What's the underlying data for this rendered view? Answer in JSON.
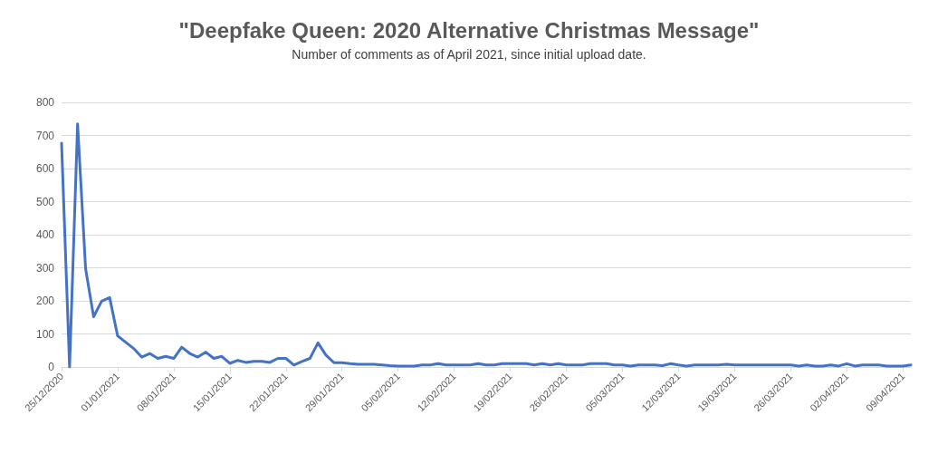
{
  "chart_data": {
    "type": "line",
    "title": "\"Deepfake Queen: 2020 Alternative Christmas Message\"",
    "subtitle": "Number of comments as of April 2021, since initial upload date.",
    "x": [
      "2020-12-25",
      "2020-12-26",
      "2020-12-27",
      "2020-12-28",
      "2020-12-29",
      "2020-12-30",
      "2020-12-31",
      "2021-01-01",
      "2021-01-02",
      "2021-01-03",
      "2021-01-04",
      "2021-01-05",
      "2021-01-06",
      "2021-01-07",
      "2021-01-08",
      "2021-01-09",
      "2021-01-10",
      "2021-01-11",
      "2021-01-12",
      "2021-01-13",
      "2021-01-14",
      "2021-01-15",
      "2021-01-16",
      "2021-01-17",
      "2021-01-18",
      "2021-01-19",
      "2021-01-20",
      "2021-01-21",
      "2021-01-22",
      "2021-01-23",
      "2021-01-24",
      "2021-01-25",
      "2021-01-26",
      "2021-01-27",
      "2021-01-28",
      "2021-01-29",
      "2021-01-30",
      "2021-01-31",
      "2021-02-01",
      "2021-02-02",
      "2021-02-03",
      "2021-02-04",
      "2021-02-05",
      "2021-02-06",
      "2021-02-07",
      "2021-02-08",
      "2021-02-09",
      "2021-02-10",
      "2021-02-11",
      "2021-02-12",
      "2021-02-13",
      "2021-02-14",
      "2021-02-15",
      "2021-02-16",
      "2021-02-17",
      "2021-02-18",
      "2021-02-19",
      "2021-02-20",
      "2021-02-21",
      "2021-02-22",
      "2021-02-23",
      "2021-02-24",
      "2021-02-25",
      "2021-02-26",
      "2021-02-27",
      "2021-02-28",
      "2021-03-01",
      "2021-03-02",
      "2021-03-03",
      "2021-03-04",
      "2021-03-05",
      "2021-03-06",
      "2021-03-07",
      "2021-03-08",
      "2021-03-09",
      "2021-03-10",
      "2021-03-11",
      "2021-03-12",
      "2021-03-13",
      "2021-03-14",
      "2021-03-15",
      "2021-03-16",
      "2021-03-17",
      "2021-03-18",
      "2021-03-19",
      "2021-03-20",
      "2021-03-21",
      "2021-03-22",
      "2021-03-23",
      "2021-03-24",
      "2021-03-25",
      "2021-03-26",
      "2021-03-27",
      "2021-03-28",
      "2021-03-29",
      "2021-03-30",
      "2021-03-31",
      "2021-04-01",
      "2021-04-02",
      "2021-04-03",
      "2021-04-04",
      "2021-04-05",
      "2021-04-06",
      "2021-04-07",
      "2021-04-08",
      "2021-04-09",
      "2021-04-10"
    ],
    "series": [
      {
        "color": "#4472c4",
        "values": [
          677,
          0,
          735,
          297,
          152,
          199,
          210,
          94,
          75,
          56,
          30,
          41,
          26,
          32,
          26,
          60,
          41,
          30,
          45,
          26,
          32,
          11,
          20,
          14,
          17,
          17,
          14,
          26,
          26,
          6,
          17,
          26,
          73,
          36,
          13,
          13,
          10,
          8,
          8,
          8,
          6,
          4,
          3,
          3,
          3,
          6,
          6,
          10,
          6,
          6,
          6,
          6,
          10,
          6,
          6,
          10,
          10,
          10,
          10,
          6,
          10,
          6,
          10,
          6,
          6,
          6,
          10,
          10,
          10,
          6,
          6,
          3,
          6,
          6,
          6,
          4,
          10,
          6,
          3,
          6,
          6,
          6,
          6,
          8,
          6,
          6,
          6,
          6,
          6,
          6,
          6,
          6,
          3,
          6,
          3,
          3,
          6,
          3,
          10,
          3,
          6,
          6,
          6,
          3,
          3,
          3,
          6
        ]
      }
    ],
    "xlim": [
      "2020-12-25",
      "2021-04-10"
    ],
    "xticks": [
      {
        "value": "2020-12-25",
        "label": "25/12/2020"
      },
      {
        "value": "2021-01-01",
        "label": "01/01/2021"
      },
      {
        "value": "2021-01-08",
        "label": "08/01/2021"
      },
      {
        "value": "2021-01-15",
        "label": "15/01/2021"
      },
      {
        "value": "2021-01-22",
        "label": "22/01/2021"
      },
      {
        "value": "2021-01-29",
        "label": "29/01/2021"
      },
      {
        "value": "2021-02-05",
        "label": "05/02/2021"
      },
      {
        "value": "2021-02-12",
        "label": "12/02/2021"
      },
      {
        "value": "2021-02-19",
        "label": "19/02/2021"
      },
      {
        "value": "2021-02-26",
        "label": "26/02/2021"
      },
      {
        "value": "2021-03-05",
        "label": "05/03/2021"
      },
      {
        "value": "2021-03-12",
        "label": "12/03/2021"
      },
      {
        "value": "2021-03-19",
        "label": "19/03/2021"
      },
      {
        "value": "2021-03-26",
        "label": "26/03/2021"
      },
      {
        "value": "2021-04-02",
        "label": "02/04/2021"
      },
      {
        "value": "2021-04-09",
        "label": "09/04/2021"
      }
    ],
    "ylim": [
      0,
      800
    ],
    "yticks": [
      0,
      100,
      200,
      300,
      400,
      500,
      600,
      700,
      800
    ],
    "grid": "y",
    "marker": "none",
    "line_style": "solid"
  }
}
